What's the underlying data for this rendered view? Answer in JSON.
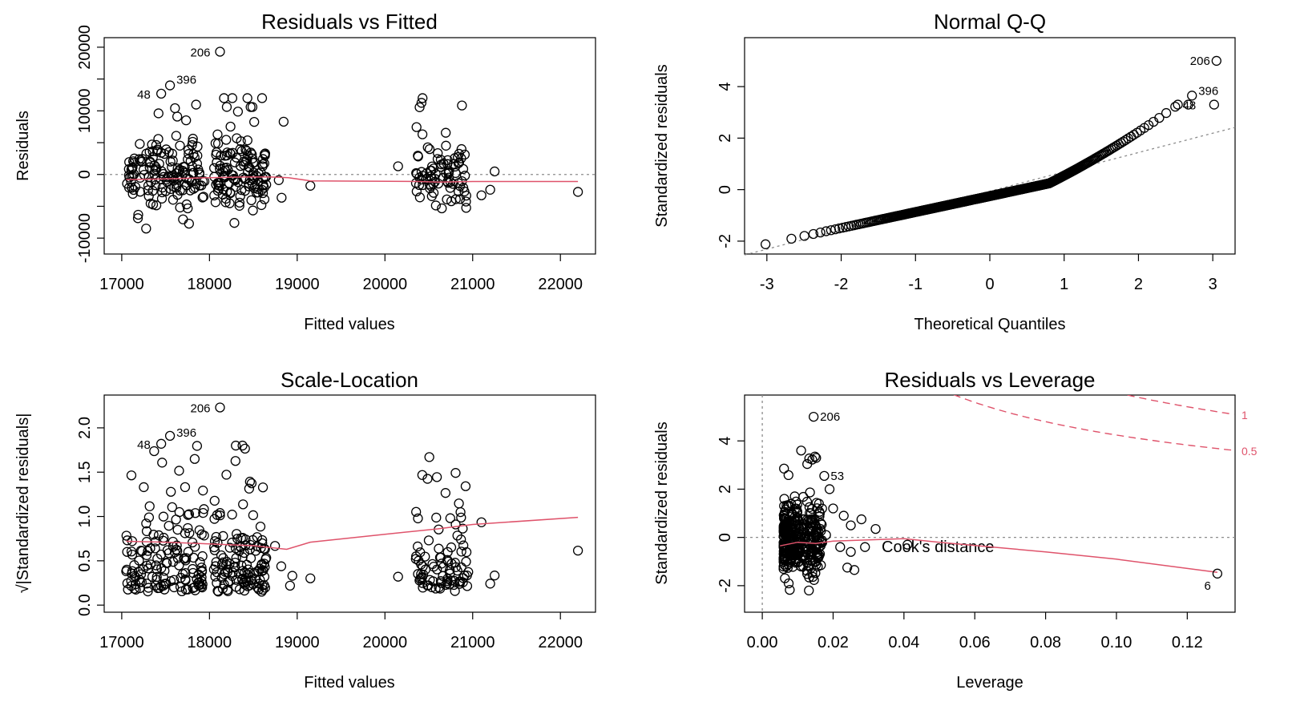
{
  "chart_data": [
    {
      "id": "rvf",
      "type": "scatter",
      "title": "Residuals vs Fitted",
      "xlabel": "Fitted values",
      "ylabel": "Residuals",
      "xlim": [
        16800,
        22400
      ],
      "ylim": [
        -12500,
        21500
      ],
      "xticks": [
        17000,
        18000,
        19000,
        20000,
        21000,
        22000
      ],
      "yticks": [
        -10000,
        0,
        10000,
        20000
      ],
      "yticks_minor": [
        -5000,
        5000,
        15000
      ],
      "ref_y": 0,
      "labeled_points": [
        {
          "label": "206",
          "x": 18120,
          "y": 19300
        },
        {
          "label": "396",
          "x": 17550,
          "y": 14000
        },
        {
          "label": "48",
          "x": 17450,
          "y": 12700
        }
      ],
      "smooth": [
        [
          17050,
          -800
        ],
        [
          17500,
          -700
        ],
        [
          18000,
          -500
        ],
        [
          18400,
          -400
        ],
        [
          18700,
          -400
        ],
        [
          18900,
          -500
        ],
        [
          19150,
          -1000
        ],
        [
          20400,
          -1100
        ],
        [
          20600,
          -1200
        ],
        [
          21000,
          -1100
        ],
        [
          22200,
          -1100
        ]
      ]
    },
    {
      "id": "qq",
      "type": "scatter",
      "title": "Normal Q-Q",
      "xlabel": "Theoretical Quantiles",
      "ylabel": "Standardized residuals",
      "xlim": [
        -3.3,
        3.3
      ],
      "ylim": [
        -2.5,
        5.9
      ],
      "xticks": [
        -3,
        -2,
        -1,
        0,
        1,
        2,
        3
      ],
      "yticks": [
        -2,
        0,
        2,
        4
      ],
      "ref_line": {
        "intercept": -0.06,
        "slope": 0.75
      },
      "labeled_points": [
        {
          "label": "206",
          "x": 3.05,
          "y": 5.0
        },
        {
          "label": "396",
          "x": 2.72,
          "y": 3.65
        },
        {
          "label": "48",
          "x": 2.53,
          "y": 3.3
        }
      ]
    },
    {
      "id": "sl",
      "type": "scatter",
      "title": "Scale-Location",
      "xlabel": "Fitted values",
      "ylabel": "√|Standardized residuals|",
      "xlim": [
        16800,
        22400
      ],
      "ylim": [
        -0.08,
        2.37
      ],
      "xticks": [
        17000,
        18000,
        19000,
        20000,
        21000,
        22000
      ],
      "yticks": [
        0.0,
        0.5,
        1.0,
        1.5,
        2.0
      ],
      "ytick_labels": [
        "0.0",
        "0.5",
        "1.0",
        "1.5",
        "2.0"
      ],
      "labeled_points": [
        {
          "label": "206",
          "x": 18120,
          "y": 2.23
        },
        {
          "label": "396",
          "x": 17550,
          "y": 1.91
        },
        {
          "label": "48",
          "x": 17450,
          "y": 1.82
        }
      ],
      "smooth": [
        [
          17050,
          0.72
        ],
        [
          17500,
          0.71
        ],
        [
          18000,
          0.69
        ],
        [
          18500,
          0.67
        ],
        [
          18880,
          0.63
        ],
        [
          19150,
          0.71
        ],
        [
          20000,
          0.8
        ],
        [
          20600,
          0.86
        ],
        [
          21000,
          0.91
        ],
        [
          22200,
          0.99
        ]
      ]
    },
    {
      "id": "rvl",
      "type": "scatter",
      "title": "Residuals vs Leverage",
      "xlabel": "Leverage",
      "ylabel": "Standardized residuals",
      "xlim": [
        -0.005,
        0.1335
      ],
      "ylim": [
        -3.1,
        5.9
      ],
      "xticks": [
        0.0,
        0.02,
        0.04,
        0.06,
        0.08,
        0.1,
        0.12
      ],
      "xtick_labels": [
        "0.00",
        "0.02",
        "0.04",
        "0.06",
        "0.08",
        "0.10",
        "0.12"
      ],
      "yticks": [
        -2,
        0,
        2,
        4
      ],
      "ref_y": 0,
      "ref_x": 0,
      "legend_text": "Cook's distance",
      "cook_contours": [
        {
          "label": "1",
          "level": 1
        },
        {
          "label": "0.5",
          "level": 0.5
        }
      ],
      "labeled_points": [
        {
          "label": "206",
          "x": 0.0145,
          "y": 5.0
        },
        {
          "label": "53",
          "x": 0.0175,
          "y": 2.55
        },
        {
          "label": "6",
          "x": 0.1285,
          "y": -1.5
        }
      ],
      "smooth": [
        [
          0.005,
          -0.35
        ],
        [
          0.01,
          -0.2
        ],
        [
          0.015,
          -0.25
        ],
        [
          0.02,
          -0.15
        ],
        [
          0.03,
          -0.1
        ],
        [
          0.04,
          -0.05
        ],
        [
          0.05,
          -0.2
        ],
        [
          0.08,
          -0.6
        ],
        [
          0.1,
          -0.9
        ],
        [
          0.1285,
          -1.45
        ]
      ]
    }
  ]
}
